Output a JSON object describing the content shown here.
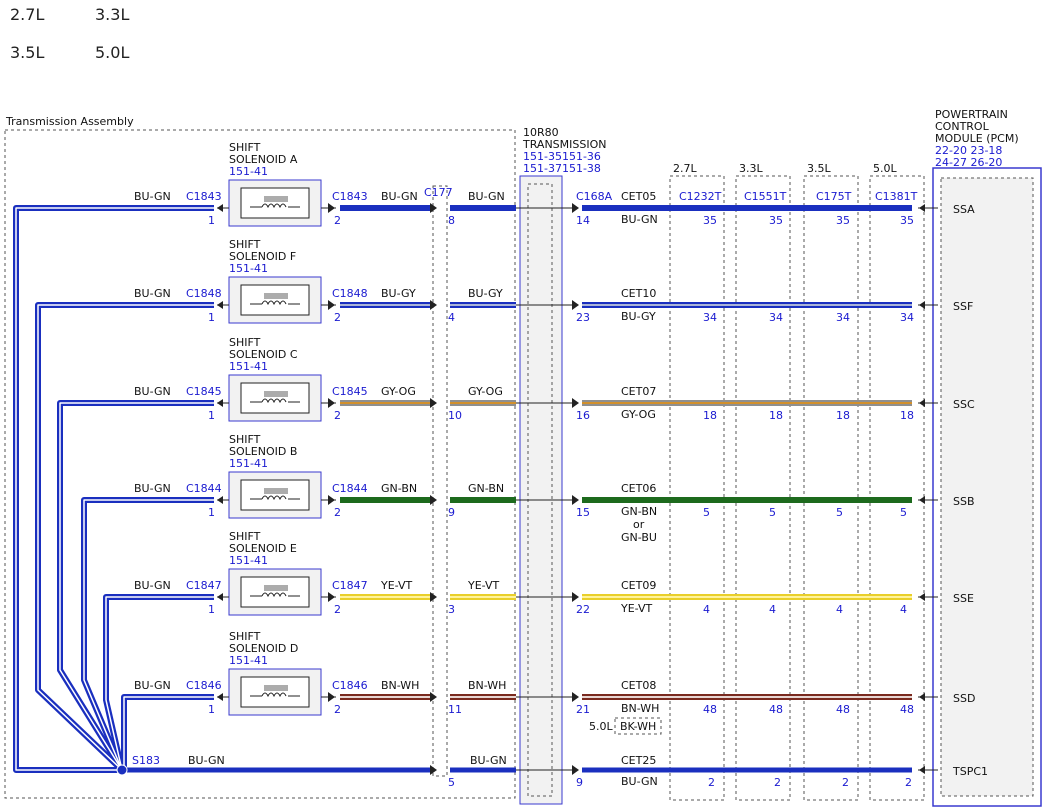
{
  "engine_variants": [
    "2.7L",
    "3.3L",
    "3.5L",
    "5.0L"
  ],
  "transmission_assembly": {
    "label": "Transmission Assembly"
  },
  "inline": {
    "title": [
      "10R80",
      "TRANSMISSION"
    ],
    "refs": "151-35151-36",
    "refs2": "151-37151-38",
    "c177": "C177",
    "c168a": "C168A"
  },
  "pcm": {
    "title": [
      "POWERTRAIN",
      "CONTROL",
      "MODULE (PCM)"
    ],
    "refs": "22-20 23-18",
    "refs2": "24-27 26-20"
  },
  "pcm_connectors": [
    {
      "engine": "2.7L",
      "connector": "C1232T"
    },
    {
      "engine": "3.3L",
      "connector": "C1551T"
    },
    {
      "engine": "3.5L",
      "connector": "C175T"
    },
    {
      "engine": "5.0L",
      "connector": "C1381T"
    }
  ],
  "solenoids": [
    {
      "name": [
        "SHIFT",
        "SOLENOID A"
      ],
      "ref": "151-41",
      "connector": "C1843",
      "pin1": "1",
      "pin2": "2",
      "wire_in": "BU-GN",
      "wire_out": "BU-GN",
      "c177_pin": "8",
      "c168_pin": "14",
      "circuit": "CET05",
      "pcm_wire": [
        "BU-GN"
      ],
      "pcm_pins": [
        "35",
        "35",
        "35",
        "35"
      ],
      "pcm_signal": "SSA",
      "color": "#1a2fbf",
      "stripe": "#1a2fbf"
    },
    {
      "name": [
        "SHIFT",
        "SOLENOID F"
      ],
      "ref": "151-41",
      "connector": "C1848",
      "pin1": "1",
      "pin2": "2",
      "wire_in": "BU-GN",
      "wire_out": "BU-GY",
      "c177_pin": "4",
      "c168_pin": "23",
      "circuit": "CET10",
      "pcm_wire": [
        "BU-GY"
      ],
      "pcm_pins": [
        "34",
        "34",
        "34",
        "34"
      ],
      "pcm_signal": "SSF",
      "color": "#1a2fbf",
      "stripe": "#aab4d6"
    },
    {
      "name": [
        "SHIFT",
        "SOLENOID C"
      ],
      "ref": "151-41",
      "connector": "C1845",
      "pin1": "1",
      "pin2": "2",
      "wire_in": "BU-GN",
      "wire_out": "GY-OG",
      "c177_pin": "10",
      "c168_pin": "16",
      "circuit": "CET07",
      "pcm_wire": [
        "GY-OG"
      ],
      "pcm_pins": [
        "18",
        "18",
        "18",
        "18"
      ],
      "pcm_signal": "SSC",
      "color": "#8f8f8f",
      "stripe": "#d2902c"
    },
    {
      "name": [
        "SHIFT",
        "SOLENOID B"
      ],
      "ref": "151-41",
      "connector": "C1844",
      "pin1": "1",
      "pin2": "2",
      "wire_in": "BU-GN",
      "wire_out": "GN-BN",
      "c177_pin": "9",
      "c168_pin": "15",
      "circuit": "CET06",
      "pcm_wire": [
        "GN-BN",
        "or",
        "GN-BU"
      ],
      "pcm_pins": [
        "5",
        "5",
        "5",
        "5"
      ],
      "pcm_signal": "SSB",
      "color": "#1d6a1d",
      "stripe": "#1d6a1d"
    },
    {
      "name": [
        "SHIFT",
        "SOLENOID E"
      ],
      "ref": "151-41",
      "connector": "C1847",
      "pin1": "1",
      "pin2": "2",
      "wire_in": "BU-GN",
      "wire_out": "YE-VT",
      "c177_pin": "3",
      "c168_pin": "22",
      "circuit": "CET09",
      "pcm_wire": [
        "YE-VT"
      ],
      "pcm_pins": [
        "4",
        "4",
        "4",
        "4"
      ],
      "pcm_signal": "SSE",
      "color": "#e9cf2a",
      "stripe": "#fff39a"
    },
    {
      "name": [
        "SHIFT",
        "SOLENOID D"
      ],
      "ref": "151-41",
      "connector": "C1846",
      "pin1": "1",
      "pin2": "2",
      "wire_in": "BU-GN",
      "wire_out": "BN-WH",
      "c177_pin": "11",
      "c168_pin": "21",
      "circuit": "CET08",
      "pcm_wire": [
        "BN-WH"
      ],
      "pcm_pins": [
        "48",
        "48",
        "48",
        "48"
      ],
      "pcm_signal": "SSD",
      "color": "#7a2a1f",
      "stripe": "#e8d6d2",
      "alt_note": {
        "engine": "5.0L",
        "wire": "BK-WH"
      }
    }
  ],
  "splice": {
    "name": "S183",
    "wire": "BU-GN",
    "c177_pin": "5",
    "c168_pin": "9",
    "circuit": "CET25",
    "pcm_wire": "BU-GN",
    "pcm_pins": [
      "2",
      "2",
      "2",
      "2"
    ],
    "pcm_signal": "TSPC1",
    "color": "#1a2fbf"
  },
  "colors": {
    "ref_text": "#1a1ad0",
    "outline": "#3a3acf"
  }
}
